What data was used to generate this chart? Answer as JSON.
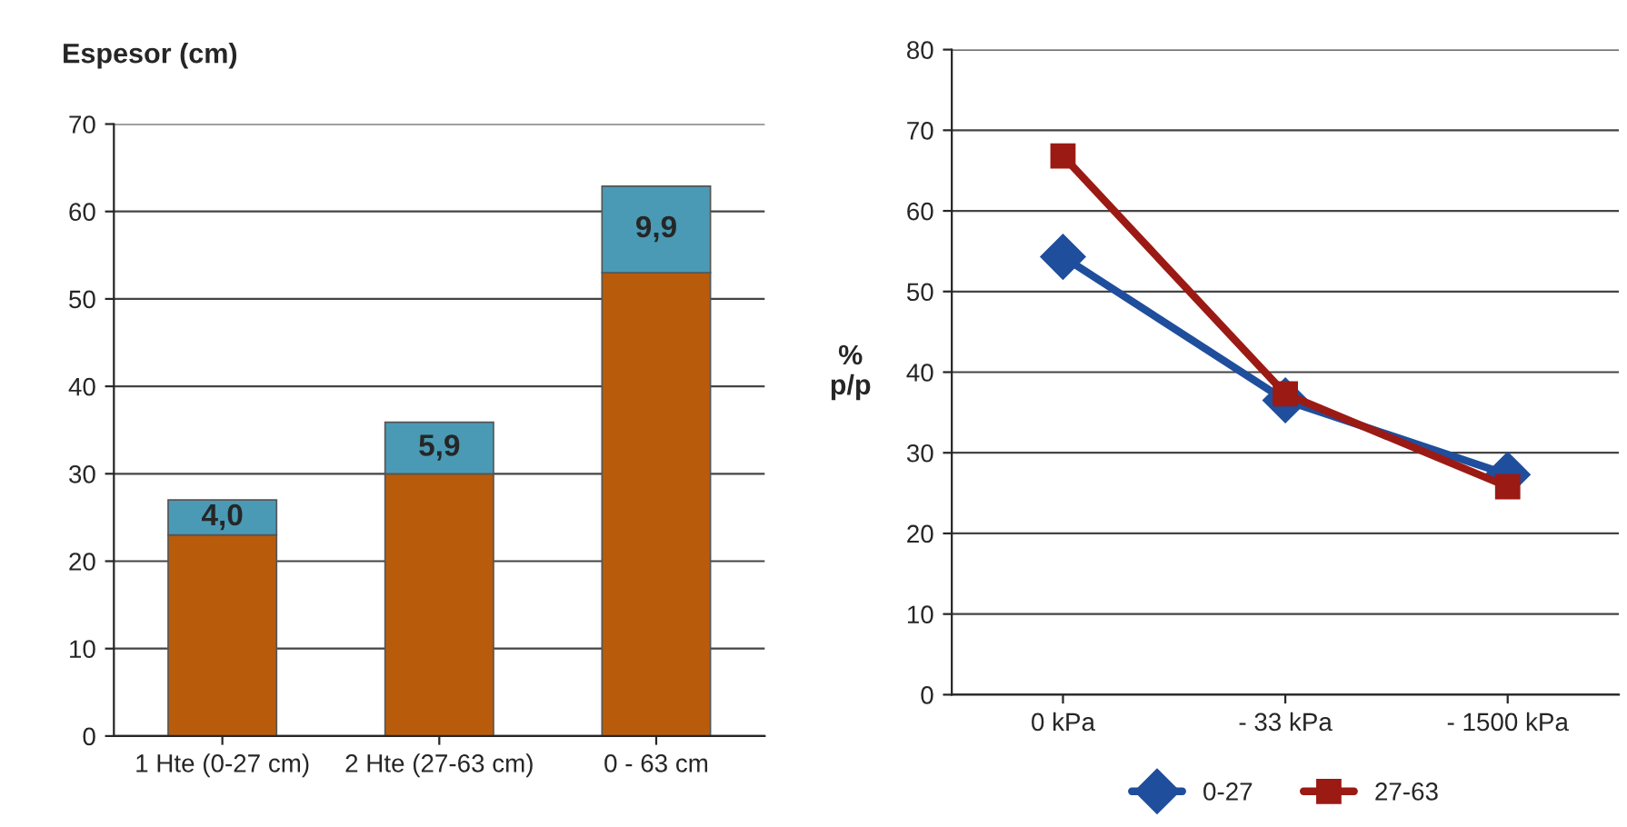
{
  "chart_data": [
    {
      "type": "bar",
      "ylabel": "Espesor (cm)",
      "categories": [
        "1 Hte (0-27 cm)",
        "2 Hte (27-63 cm)",
        "0 - 63 cm"
      ],
      "stacked": true,
      "series": [
        {
          "color": "#b85c0c",
          "values": [
            23,
            30,
            53
          ]
        },
        {
          "color": "#4a9ab5",
          "values": [
            4.0,
            5.9,
            9.9
          ],
          "value_labels": [
            "4,0",
            "5,9",
            "9,9"
          ]
        }
      ],
      "ylim": [
        0,
        70
      ],
      "yticks": [
        0,
        10,
        20,
        30,
        40,
        50,
        60,
        70
      ],
      "grid": "y",
      "legend": false
    },
    {
      "type": "line",
      "ylabel": "%\np/p",
      "categories": [
        "0 kPa",
        "- 33 kPa",
        "- 1500 kPa"
      ],
      "series": [
        {
          "name": "0-27",
          "color": "#1f4e9c",
          "marker": "diamond",
          "values": [
            54.3,
            36.5,
            27.3
          ]
        },
        {
          "name": "27-63",
          "color": "#9c1a14",
          "marker": "square",
          "values": [
            66.8,
            37.3,
            25.8
          ]
        }
      ],
      "ylim": [
        0,
        80
      ],
      "yticks": [
        0,
        10,
        20,
        30,
        40,
        50,
        60,
        70,
        80
      ],
      "grid": "y",
      "legend": "bottom",
      "line_style": "solid"
    }
  ]
}
